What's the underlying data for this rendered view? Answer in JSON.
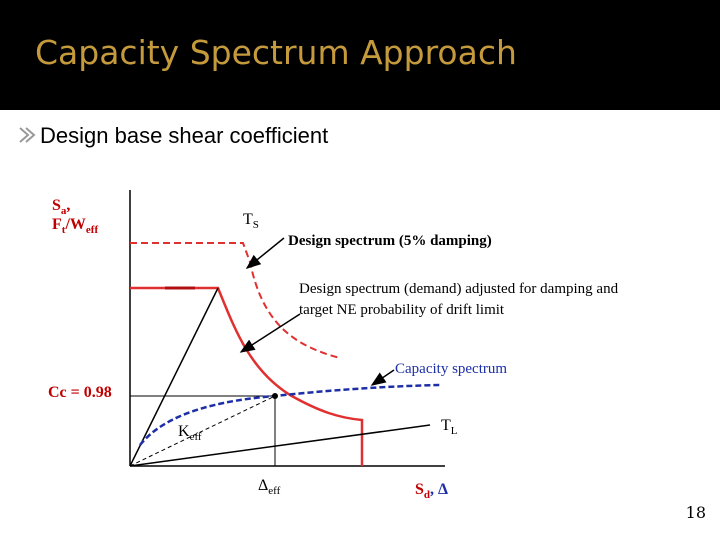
{
  "header": {
    "title": "Capacity Spectrum Approach"
  },
  "bullet": "Design base shear coefficient",
  "diagram": {
    "y_axis_label": {
      "line1": [
        "S",
        "a",
        ","
      ],
      "line2": [
        "F",
        "t",
        "/W",
        "eff"
      ]
    },
    "ts_label": [
      "T",
      "S"
    ],
    "design_spectrum": "Design spectrum (5% damping)",
    "adjusted_spectrum": [
      "Design spectrum (demand) adjusted for damping and",
      "target NE probability of drift limit"
    ],
    "capacity_spectrum": "Capacity spectrum",
    "cc_label": "Cc = 0.98",
    "keff_label": [
      "K",
      "eff"
    ],
    "tl_label": [
      "T",
      "L"
    ],
    "delta_eff_label": [
      "Δ",
      "eff"
    ],
    "x_axis_label": [
      "S",
      "d",
      ", Δ"
    ]
  },
  "page_number": "18"
}
